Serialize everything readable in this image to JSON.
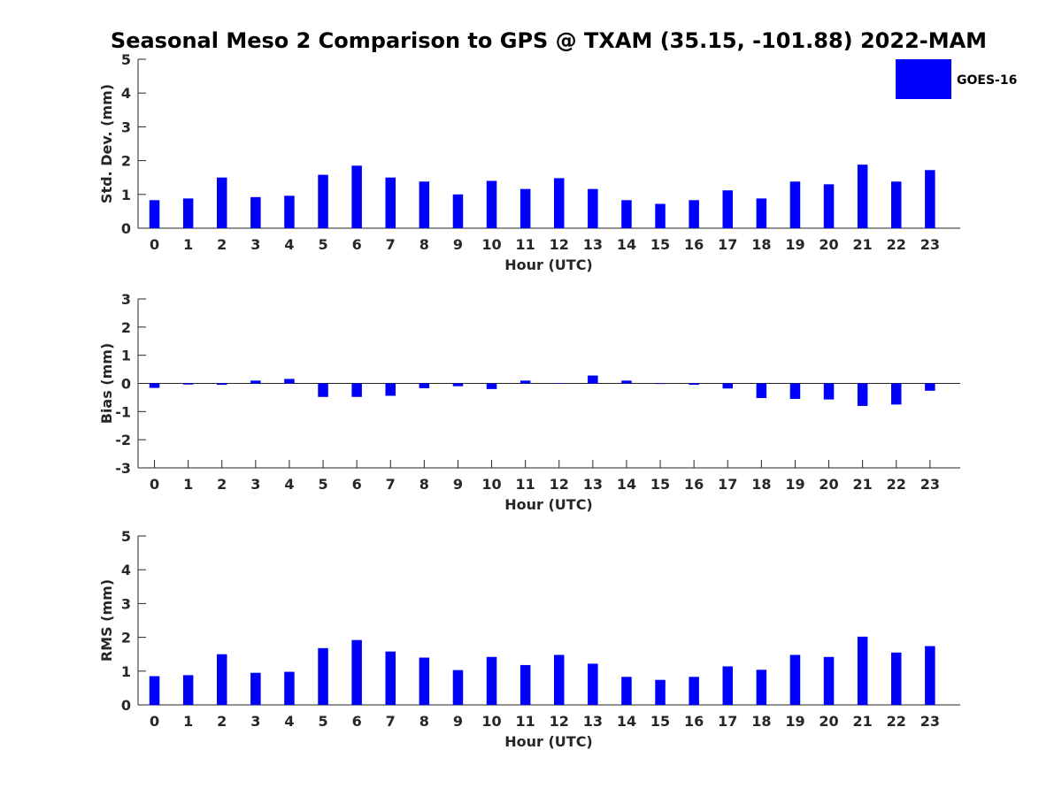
{
  "chart_data": {
    "title": "Seasonal Meso 2 Comparison to GPS @ TXAM (35.15, -101.88) 2022-MAM",
    "type": "bar",
    "legend": {
      "label": "GOES-16",
      "color": "#0000ff",
      "placement": "top-right"
    },
    "categories": [
      "0",
      "1",
      "2",
      "3",
      "4",
      "5",
      "6",
      "7",
      "8",
      "9",
      "10",
      "11",
      "12",
      "13",
      "14",
      "15",
      "16",
      "17",
      "18",
      "19",
      "20",
      "21",
      "22",
      "23"
    ],
    "panels": [
      {
        "id": "std",
        "ylabel": "Std. Dev. (mm)",
        "xlabel": "Hour (UTC)",
        "ylim": [
          0,
          5
        ],
        "yticks": [
          "0",
          "1",
          "2",
          "3",
          "4",
          "5"
        ],
        "values": [
          0.83,
          0.88,
          1.5,
          0.92,
          0.96,
          1.58,
          1.85,
          1.5,
          1.38,
          1.0,
          1.4,
          1.16,
          1.48,
          1.16,
          0.83,
          0.72,
          0.83,
          1.12,
          0.88,
          1.38,
          1.3,
          1.88,
          1.38,
          1.72
        ]
      },
      {
        "id": "bias",
        "ylabel": "Bias (mm)",
        "xlabel": "Hour (UTC)",
        "ylim": [
          -3,
          3
        ],
        "yticks": [
          "-3",
          "-2",
          "-1",
          "0",
          "1",
          "2",
          "3"
        ],
        "values": [
          -0.16,
          -0.04,
          -0.05,
          0.1,
          0.16,
          -0.48,
          -0.48,
          -0.44,
          -0.17,
          -0.1,
          -0.2,
          0.1,
          0.0,
          0.28,
          0.1,
          -0.02,
          -0.05,
          -0.18,
          -0.52,
          -0.55,
          -0.57,
          -0.8,
          -0.75,
          -0.26
        ]
      },
      {
        "id": "rms",
        "ylabel": "RMS (mm)",
        "xlabel": "Hour (UTC)",
        "ylim": [
          0,
          5
        ],
        "yticks": [
          "0",
          "1",
          "2",
          "3",
          "4",
          "5"
        ],
        "values": [
          0.85,
          0.88,
          1.5,
          0.95,
          0.98,
          1.68,
          1.92,
          1.58,
          1.4,
          1.03,
          1.42,
          1.18,
          1.48,
          1.22,
          0.83,
          0.74,
          0.83,
          1.14,
          1.04,
          1.48,
          1.42,
          2.02,
          1.55,
          1.74
        ]
      }
    ]
  }
}
